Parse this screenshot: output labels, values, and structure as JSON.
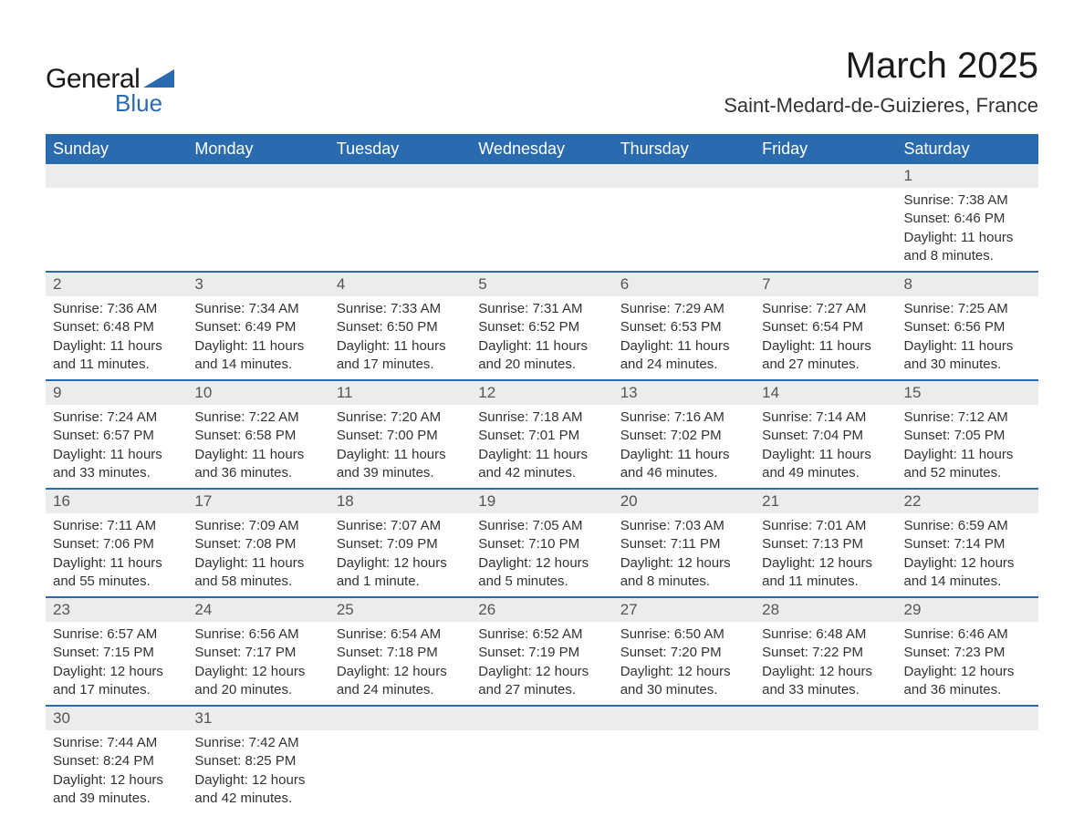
{
  "logo": {
    "word1": "General",
    "word2": "Blue",
    "shape_color": "#2a6bb0",
    "text_color": "#1a1a1a"
  },
  "title": "March 2025",
  "location": "Saint-Medard-de-Guizieres, France",
  "colors": {
    "header_bg": "#2a6bb0",
    "header_text": "#ffffff",
    "daynum_bg": "#ececec",
    "daynum_text": "#555555",
    "body_text": "#333333",
    "row_divider": "#2a6bb0",
    "page_bg": "#ffffff"
  },
  "fonts": {
    "title_size_pt": 30,
    "location_size_pt": 17,
    "header_size_pt": 14,
    "body_size_pt": 11
  },
  "weekdays": [
    "Sunday",
    "Monday",
    "Tuesday",
    "Wednesday",
    "Thursday",
    "Friday",
    "Saturday"
  ],
  "labels": {
    "sunrise": "Sunrise:",
    "sunset": "Sunset:",
    "daylight": "Daylight:"
  },
  "weeks": [
    [
      {
        "empty": true
      },
      {
        "empty": true
      },
      {
        "empty": true
      },
      {
        "empty": true
      },
      {
        "empty": true
      },
      {
        "empty": true
      },
      {
        "day": "1",
        "sunrise": "7:38 AM",
        "sunset": "6:46 PM",
        "daylight": "11 hours and 8 minutes."
      }
    ],
    [
      {
        "day": "2",
        "sunrise": "7:36 AM",
        "sunset": "6:48 PM",
        "daylight": "11 hours and 11 minutes."
      },
      {
        "day": "3",
        "sunrise": "7:34 AM",
        "sunset": "6:49 PM",
        "daylight": "11 hours and 14 minutes."
      },
      {
        "day": "4",
        "sunrise": "7:33 AM",
        "sunset": "6:50 PM",
        "daylight": "11 hours and 17 minutes."
      },
      {
        "day": "5",
        "sunrise": "7:31 AM",
        "sunset": "6:52 PM",
        "daylight": "11 hours and 20 minutes."
      },
      {
        "day": "6",
        "sunrise": "7:29 AM",
        "sunset": "6:53 PM",
        "daylight": "11 hours and 24 minutes."
      },
      {
        "day": "7",
        "sunrise": "7:27 AM",
        "sunset": "6:54 PM",
        "daylight": "11 hours and 27 minutes."
      },
      {
        "day": "8",
        "sunrise": "7:25 AM",
        "sunset": "6:56 PM",
        "daylight": "11 hours and 30 minutes."
      }
    ],
    [
      {
        "day": "9",
        "sunrise": "7:24 AM",
        "sunset": "6:57 PM",
        "daylight": "11 hours and 33 minutes."
      },
      {
        "day": "10",
        "sunrise": "7:22 AM",
        "sunset": "6:58 PM",
        "daylight": "11 hours and 36 minutes."
      },
      {
        "day": "11",
        "sunrise": "7:20 AM",
        "sunset": "7:00 PM",
        "daylight": "11 hours and 39 minutes."
      },
      {
        "day": "12",
        "sunrise": "7:18 AM",
        "sunset": "7:01 PM",
        "daylight": "11 hours and 42 minutes."
      },
      {
        "day": "13",
        "sunrise": "7:16 AM",
        "sunset": "7:02 PM",
        "daylight": "11 hours and 46 minutes."
      },
      {
        "day": "14",
        "sunrise": "7:14 AM",
        "sunset": "7:04 PM",
        "daylight": "11 hours and 49 minutes."
      },
      {
        "day": "15",
        "sunrise": "7:12 AM",
        "sunset": "7:05 PM",
        "daylight": "11 hours and 52 minutes."
      }
    ],
    [
      {
        "day": "16",
        "sunrise": "7:11 AM",
        "sunset": "7:06 PM",
        "daylight": "11 hours and 55 minutes."
      },
      {
        "day": "17",
        "sunrise": "7:09 AM",
        "sunset": "7:08 PM",
        "daylight": "11 hours and 58 minutes."
      },
      {
        "day": "18",
        "sunrise": "7:07 AM",
        "sunset": "7:09 PM",
        "daylight": "12 hours and 1 minute."
      },
      {
        "day": "19",
        "sunrise": "7:05 AM",
        "sunset": "7:10 PM",
        "daylight": "12 hours and 5 minutes."
      },
      {
        "day": "20",
        "sunrise": "7:03 AM",
        "sunset": "7:11 PM",
        "daylight": "12 hours and 8 minutes."
      },
      {
        "day": "21",
        "sunrise": "7:01 AM",
        "sunset": "7:13 PM",
        "daylight": "12 hours and 11 minutes."
      },
      {
        "day": "22",
        "sunrise": "6:59 AM",
        "sunset": "7:14 PM",
        "daylight": "12 hours and 14 minutes."
      }
    ],
    [
      {
        "day": "23",
        "sunrise": "6:57 AM",
        "sunset": "7:15 PM",
        "daylight": "12 hours and 17 minutes."
      },
      {
        "day": "24",
        "sunrise": "6:56 AM",
        "sunset": "7:17 PM",
        "daylight": "12 hours and 20 minutes."
      },
      {
        "day": "25",
        "sunrise": "6:54 AM",
        "sunset": "7:18 PM",
        "daylight": "12 hours and 24 minutes."
      },
      {
        "day": "26",
        "sunrise": "6:52 AM",
        "sunset": "7:19 PM",
        "daylight": "12 hours and 27 minutes."
      },
      {
        "day": "27",
        "sunrise": "6:50 AM",
        "sunset": "7:20 PM",
        "daylight": "12 hours and 30 minutes."
      },
      {
        "day": "28",
        "sunrise": "6:48 AM",
        "sunset": "7:22 PM",
        "daylight": "12 hours and 33 minutes."
      },
      {
        "day": "29",
        "sunrise": "6:46 AM",
        "sunset": "7:23 PM",
        "daylight": "12 hours and 36 minutes."
      }
    ],
    [
      {
        "day": "30",
        "sunrise": "7:44 AM",
        "sunset": "8:24 PM",
        "daylight": "12 hours and 39 minutes."
      },
      {
        "day": "31",
        "sunrise": "7:42 AM",
        "sunset": "8:25 PM",
        "daylight": "12 hours and 42 minutes."
      },
      {
        "empty": true
      },
      {
        "empty": true
      },
      {
        "empty": true
      },
      {
        "empty": true
      },
      {
        "empty": true
      }
    ]
  ]
}
